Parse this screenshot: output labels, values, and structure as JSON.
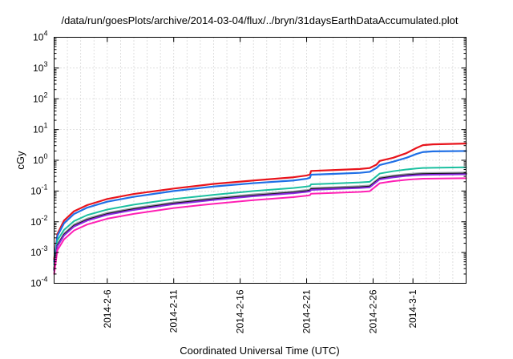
{
  "chart_data": {
    "type": "line",
    "title": "/data/run/goesPlots/archive/2014-03-04/flux/../bryn/31daysEarthDataAccumulated.plot",
    "xlabel": "Coordinated Universal Time (UTC)",
    "ylabel": "cGy",
    "yscale": "log",
    "ylim": [
      0.0001,
      10000
    ],
    "xlim": [
      "2014-02-02T00:00",
      "2014-03-05T00:00"
    ],
    "grid": true,
    "legend": "none",
    "yticks": [
      {
        "value": 0.0001,
        "base": "10",
        "exp": "-4"
      },
      {
        "value": 0.001,
        "base": "10",
        "exp": "-3"
      },
      {
        "value": 0.01,
        "base": "10",
        "exp": "-2"
      },
      {
        "value": 0.1,
        "base": "10",
        "exp": "-1"
      },
      {
        "value": 1,
        "base": "10",
        "exp": "0"
      },
      {
        "value": 10,
        "base": "10",
        "exp": "1"
      },
      {
        "value": 100,
        "base": "10",
        "exp": "2"
      },
      {
        "value": 1000,
        "base": "10",
        "exp": "3"
      },
      {
        "value": 10000,
        "base": "10",
        "exp": "4"
      }
    ],
    "xticks": [
      {
        "value": "2014-02-06",
        "label": "2014-2-6"
      },
      {
        "value": "2014-02-11",
        "label": "2014-2-11"
      },
      {
        "value": "2014-02-16",
        "label": "2014-2-16"
      },
      {
        "value": "2014-02-21",
        "label": "2014-2-21"
      },
      {
        "value": "2014-02-26",
        "label": "2014-2-26"
      },
      {
        "value": "2014-03-01",
        "label": "2014-3-1"
      }
    ],
    "x_minor_grid_step_days": 1,
    "series": [
      {
        "color": "#e8141c",
        "width": 2.2,
        "points": [
          [
            "2014-02-02T00:00",
            0.0006
          ],
          [
            "2014-02-02T06:00",
            0.004
          ],
          [
            "2014-02-02T18:00",
            0.011
          ],
          [
            "2014-02-03T12:00",
            0.022
          ],
          [
            "2014-02-04T12:00",
            0.035
          ],
          [
            "2014-02-06T00:00",
            0.055
          ],
          [
            "2014-02-08T00:00",
            0.08
          ],
          [
            "2014-02-11T00:00",
            0.12
          ],
          [
            "2014-02-14T00:00",
            0.17
          ],
          [
            "2014-02-17T00:00",
            0.22
          ],
          [
            "2014-02-20T00:00",
            0.28
          ],
          [
            "2014-02-21T00:00",
            0.32
          ],
          [
            "2014-02-21T06:00",
            0.34
          ],
          [
            "2014-02-21T08:00",
            0.45
          ],
          [
            "2014-02-23T00:00",
            0.48
          ],
          [
            "2014-02-25T00:00",
            0.52
          ],
          [
            "2014-02-25T18:00",
            0.56
          ],
          [
            "2014-02-26T06:00",
            0.72
          ],
          [
            "2014-02-26T12:00",
            0.95
          ],
          [
            "2014-02-27T12:00",
            1.2
          ],
          [
            "2014-02-28T12:00",
            1.7
          ],
          [
            "2014-03-01T06:00",
            2.5
          ],
          [
            "2014-03-01T18:00",
            3.1
          ],
          [
            "2014-03-02T12:00",
            3.3
          ],
          [
            "2014-03-05T00:00",
            3.5
          ]
        ]
      },
      {
        "color": "#1f6fe6",
        "width": 2.2,
        "points": [
          [
            "2014-02-02T00:00",
            0.0005
          ],
          [
            "2014-02-02T06:00",
            0.0035
          ],
          [
            "2014-02-02T18:00",
            0.009
          ],
          [
            "2014-02-03T12:00",
            0.018
          ],
          [
            "2014-02-04T12:00",
            0.029
          ],
          [
            "2014-02-06T00:00",
            0.045
          ],
          [
            "2014-02-08T00:00",
            0.065
          ],
          [
            "2014-02-11T00:00",
            0.1
          ],
          [
            "2014-02-14T00:00",
            0.14
          ],
          [
            "2014-02-17T00:00",
            0.18
          ],
          [
            "2014-02-20T00:00",
            0.22
          ],
          [
            "2014-02-21T00:00",
            0.25
          ],
          [
            "2014-02-21T06:00",
            0.27
          ],
          [
            "2014-02-21T08:00",
            0.34
          ],
          [
            "2014-02-23T00:00",
            0.36
          ],
          [
            "2014-02-25T00:00",
            0.39
          ],
          [
            "2014-02-25T18:00",
            0.42
          ],
          [
            "2014-02-26T06:00",
            0.56
          ],
          [
            "2014-02-26T12:00",
            0.7
          ],
          [
            "2014-02-27T12:00",
            0.9
          ],
          [
            "2014-02-28T12:00",
            1.2
          ],
          [
            "2014-03-01T06:00",
            1.6
          ],
          [
            "2014-03-01T18:00",
            1.85
          ],
          [
            "2014-03-02T12:00",
            1.95
          ],
          [
            "2014-03-05T00:00",
            2.0
          ]
        ]
      },
      {
        "color": "#1cc0a0",
        "width": 2.0,
        "points": [
          [
            "2014-02-02T00:00",
            0.0004
          ],
          [
            "2014-02-02T06:00",
            0.0025
          ],
          [
            "2014-02-02T18:00",
            0.0055
          ],
          [
            "2014-02-03T12:00",
            0.0105
          ],
          [
            "2014-02-04T12:00",
            0.0165
          ],
          [
            "2014-02-06T00:00",
            0.025
          ],
          [
            "2014-02-08T00:00",
            0.036
          ],
          [
            "2014-02-11T00:00",
            0.055
          ],
          [
            "2014-02-14T00:00",
            0.075
          ],
          [
            "2014-02-17T00:00",
            0.1
          ],
          [
            "2014-02-20T00:00",
            0.125
          ],
          [
            "2014-02-21T00:00",
            0.14
          ],
          [
            "2014-02-21T06:00",
            0.145
          ],
          [
            "2014-02-21T08:00",
            0.165
          ],
          [
            "2014-02-23T00:00",
            0.175
          ],
          [
            "2014-02-25T00:00",
            0.19
          ],
          [
            "2014-02-25T18:00",
            0.2
          ],
          [
            "2014-02-26T06:00",
            0.3
          ],
          [
            "2014-02-26T12:00",
            0.37
          ],
          [
            "2014-02-27T12:00",
            0.44
          ],
          [
            "2014-02-28T12:00",
            0.5
          ],
          [
            "2014-03-01T06:00",
            0.54
          ],
          [
            "2014-03-01T18:00",
            0.56
          ],
          [
            "2014-03-02T12:00",
            0.57
          ],
          [
            "2014-03-05T00:00",
            0.59
          ]
        ]
      },
      {
        "color": "#9aa0a6",
        "width": 2.0,
        "points": [
          [
            "2014-02-02T00:00",
            0.0003
          ],
          [
            "2014-02-02T06:00",
            0.0018
          ],
          [
            "2014-02-02T18:00",
            0.0042
          ],
          [
            "2014-02-03T12:00",
            0.0082
          ],
          [
            "2014-02-04T12:00",
            0.0128
          ],
          [
            "2014-02-06T00:00",
            0.0195
          ],
          [
            "2014-02-08T00:00",
            0.028
          ],
          [
            "2014-02-11T00:00",
            0.043
          ],
          [
            "2014-02-14T00:00",
            0.059
          ],
          [
            "2014-02-17T00:00",
            0.078
          ],
          [
            "2014-02-20T00:00",
            0.097
          ],
          [
            "2014-02-21T00:00",
            0.108
          ],
          [
            "2014-02-21T06:00",
            0.112
          ],
          [
            "2014-02-21T08:00",
            0.126
          ],
          [
            "2014-02-23T00:00",
            0.133
          ],
          [
            "2014-02-25T00:00",
            0.144
          ],
          [
            "2014-02-25T18:00",
            0.152
          ],
          [
            "2014-02-26T06:00",
            0.225
          ],
          [
            "2014-02-26T12:00",
            0.275
          ],
          [
            "2014-02-27T12:00",
            0.32
          ],
          [
            "2014-02-28T12:00",
            0.355
          ],
          [
            "2014-03-01T06:00",
            0.375
          ],
          [
            "2014-03-01T18:00",
            0.385
          ],
          [
            "2014-03-02T12:00",
            0.39
          ],
          [
            "2014-03-05T00:00",
            0.4
          ]
        ]
      },
      {
        "color": "#111111",
        "width": 2.2,
        "points": [
          [
            "2014-02-02T00:00",
            0.00028
          ],
          [
            "2014-02-02T06:00",
            0.0017
          ],
          [
            "2014-02-02T18:00",
            0.0038
          ],
          [
            "2014-02-03T12:00",
            0.0074
          ],
          [
            "2014-02-04T12:00",
            0.0116
          ],
          [
            "2014-02-06T00:00",
            0.0178
          ],
          [
            "2014-02-08T00:00",
            0.0256
          ],
          [
            "2014-02-11T00:00",
            0.0393
          ],
          [
            "2014-02-14T00:00",
            0.054
          ],
          [
            "2014-02-17T00:00",
            0.071
          ],
          [
            "2014-02-20T00:00",
            0.089
          ],
          [
            "2014-02-21T00:00",
            0.099
          ],
          [
            "2014-02-21T06:00",
            0.103
          ],
          [
            "2014-02-21T08:00",
            0.115
          ],
          [
            "2014-02-23T00:00",
            0.122
          ],
          [
            "2014-02-25T00:00",
            0.132
          ],
          [
            "2014-02-25T18:00",
            0.139
          ],
          [
            "2014-02-26T06:00",
            0.207
          ],
          [
            "2014-02-26T12:00",
            0.252
          ],
          [
            "2014-02-27T12:00",
            0.293
          ],
          [
            "2014-02-28T12:00",
            0.326
          ],
          [
            "2014-03-01T06:00",
            0.344
          ],
          [
            "2014-03-01T18:00",
            0.353
          ],
          [
            "2014-03-02T12:00",
            0.358
          ],
          [
            "2014-03-05T00:00",
            0.367
          ]
        ]
      },
      {
        "color": "#8a2be2",
        "width": 2.0,
        "points": [
          [
            "2014-02-02T00:00",
            0.00026
          ],
          [
            "2014-02-02T06:00",
            0.0016
          ],
          [
            "2014-02-02T18:00",
            0.0036
          ],
          [
            "2014-02-03T12:00",
            0.007
          ],
          [
            "2014-02-04T12:00",
            0.011
          ],
          [
            "2014-02-06T00:00",
            0.0169
          ],
          [
            "2014-02-08T00:00",
            0.0243
          ],
          [
            "2014-02-11T00:00",
            0.0373
          ],
          [
            "2014-02-14T00:00",
            0.0513
          ],
          [
            "2014-02-17T00:00",
            0.0675
          ],
          [
            "2014-02-20T00:00",
            0.0845
          ],
          [
            "2014-02-21T00:00",
            0.094
          ],
          [
            "2014-02-21T06:00",
            0.098
          ],
          [
            "2014-02-21T08:00",
            0.109
          ],
          [
            "2014-02-23T00:00",
            0.116
          ],
          [
            "2014-02-25T00:00",
            0.125
          ],
          [
            "2014-02-25T18:00",
            0.132
          ],
          [
            "2014-02-26T06:00",
            0.197
          ],
          [
            "2014-02-26T12:00",
            0.239
          ],
          [
            "2014-02-27T12:00",
            0.278
          ],
          [
            "2014-02-28T12:00",
            0.31
          ],
          [
            "2014-03-01T06:00",
            0.327
          ],
          [
            "2014-03-01T18:00",
            0.335
          ],
          [
            "2014-03-02T12:00",
            0.34
          ],
          [
            "2014-03-05T00:00",
            0.349
          ]
        ]
      },
      {
        "color": "#ff1fb4",
        "width": 2.0,
        "points": [
          [
            "2014-02-02T00:00",
            0.0002
          ],
          [
            "2014-02-02T06:00",
            0.0012
          ],
          [
            "2014-02-02T18:00",
            0.0027
          ],
          [
            "2014-02-03T12:00",
            0.0052
          ],
          [
            "2014-02-04T12:00",
            0.0082
          ],
          [
            "2014-02-06T00:00",
            0.0126
          ],
          [
            "2014-02-08T00:00",
            0.0181
          ],
          [
            "2014-02-11T00:00",
            0.0279
          ],
          [
            "2014-02-14T00:00",
            0.0384
          ],
          [
            "2014-02-17T00:00",
            0.0505
          ],
          [
            "2014-02-20T00:00",
            0.0632
          ],
          [
            "2014-02-21T00:00",
            0.0703
          ],
          [
            "2014-02-21T06:00",
            0.0733
          ],
          [
            "2014-02-21T08:00",
            0.0815
          ],
          [
            "2014-02-23T00:00",
            0.0868
          ],
          [
            "2014-02-25T00:00",
            0.0935
          ],
          [
            "2014-02-25T18:00",
            0.0987
          ],
          [
            "2014-02-26T06:00",
            0.147
          ],
          [
            "2014-02-26T12:00",
            0.179
          ],
          [
            "2014-02-27T12:00",
            0.208
          ],
          [
            "2014-02-28T12:00",
            0.232
          ],
          [
            "2014-03-01T06:00",
            0.245
          ],
          [
            "2014-03-01T18:00",
            0.251
          ],
          [
            "2014-03-02T12:00",
            0.254
          ],
          [
            "2014-03-05T00:00",
            0.261
          ]
        ]
      }
    ]
  }
}
